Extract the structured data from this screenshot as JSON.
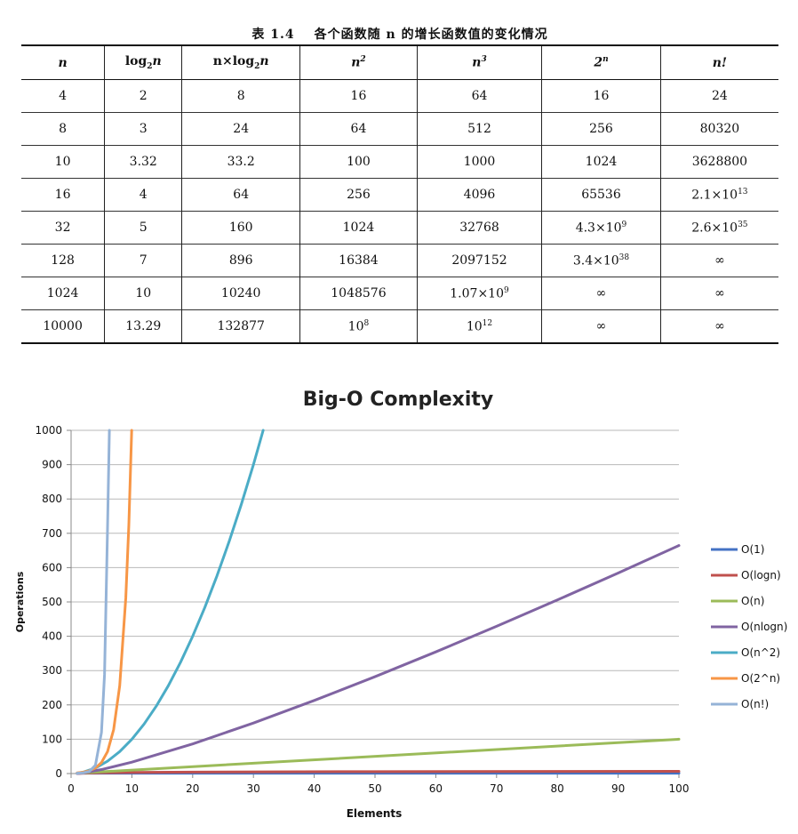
{
  "table": {
    "caption_number": "表 1.4",
    "caption_text": "各个函数随 n 的增长函数值的变化情况",
    "headers": [
      {
        "main": "n"
      },
      {
        "pre": "log",
        "sub": "2",
        "post": "n"
      },
      {
        "pre": "n×log",
        "sub": "2",
        "post": "n"
      },
      {
        "main": "n",
        "sup": "2"
      },
      {
        "main": "n",
        "sup": "3"
      },
      {
        "main": "2",
        "sup": "n"
      },
      {
        "main": "n!"
      }
    ],
    "rows": [
      [
        "4",
        "2",
        "8",
        "16",
        "64",
        "16",
        "24"
      ],
      [
        "8",
        "3",
        "24",
        "64",
        "512",
        "256",
        "80320"
      ],
      [
        "10",
        "3.32",
        "33.2",
        "100",
        "1000",
        "1024",
        "3628800"
      ],
      [
        "16",
        "4",
        "64",
        "256",
        "4096",
        "65536",
        {
          "base": "2.1×10",
          "exp": "13"
        }
      ],
      [
        "32",
        "5",
        "160",
        "1024",
        "32768",
        {
          "base": "4.3×10",
          "exp": "9"
        },
        {
          "base": "2.6×10",
          "exp": "35"
        }
      ],
      [
        "128",
        "7",
        "896",
        "16384",
        "2097152",
        {
          "base": "3.4×10",
          "exp": "38"
        },
        "∞"
      ],
      [
        "1024",
        "10",
        "10240",
        "1048576",
        {
          "base": "1.07×10",
          "exp": "9"
        },
        "∞",
        "∞"
      ],
      [
        "10000",
        "13.29",
        "132877",
        {
          "base": "10",
          "exp": "8"
        },
        {
          "base": "10",
          "exp": "12"
        },
        "∞",
        "∞"
      ]
    ]
  },
  "chart_data": {
    "type": "line",
    "title": "Big-O Complexity",
    "xlabel": "Elements",
    "ylabel": "Operations",
    "xlim": [
      0,
      100
    ],
    "ylim": [
      0,
      1000
    ],
    "xticks": [
      0,
      10,
      20,
      30,
      40,
      50,
      60,
      70,
      80,
      90,
      100
    ],
    "yticks": [
      0,
      100,
      200,
      300,
      400,
      500,
      600,
      700,
      800,
      900,
      1000
    ],
    "grid": true,
    "legend_position": "right",
    "series": [
      {
        "name": "O(1)",
        "color": "#4472C4",
        "x": [
          1,
          100
        ],
        "y": [
          1,
          1
        ]
      },
      {
        "name": "O(logn)",
        "color": "#C0504D",
        "x": [
          1,
          2,
          5,
          10,
          20,
          50,
          100
        ],
        "y": [
          0,
          1,
          2.32,
          3.32,
          4.32,
          5.64,
          6.64
        ]
      },
      {
        "name": "O(n)",
        "color": "#9BBB59",
        "x": [
          1,
          100
        ],
        "y": [
          1,
          100
        ]
      },
      {
        "name": "O(nlogn)",
        "color": "#8064A2",
        "x": [
          1,
          2,
          5,
          10,
          20,
          30,
          40,
          50,
          60,
          70,
          80,
          90,
          100
        ],
        "y": [
          0,
          2,
          11.6,
          33.2,
          86.4,
          147.2,
          212.9,
          282.2,
          354.4,
          429,
          505.8,
          584.3,
          664.4
        ]
      },
      {
        "name": "O(n^2)",
        "color": "#4BACC6",
        "x": [
          1,
          2,
          4,
          6,
          8,
          10,
          12,
          14,
          16,
          18,
          20,
          22,
          24,
          26,
          28,
          30,
          31.6
        ],
        "y": [
          1,
          4,
          16,
          36,
          64,
          100,
          144,
          196,
          256,
          324,
          400,
          484,
          576,
          676,
          784,
          900,
          1000
        ]
      },
      {
        "name": "O(2^n)",
        "color": "#F79646",
        "x": [
          1,
          2,
          3,
          4,
          5,
          6,
          7,
          8,
          9,
          9.5,
          9.97
        ],
        "y": [
          2,
          4,
          8,
          16,
          32,
          64,
          128,
          256,
          512,
          724,
          1000
        ]
      },
      {
        "name": "O(n!)",
        "color": "#95B3D7",
        "x": [
          1,
          2,
          3,
          4,
          5,
          5.5,
          6,
          6.3
        ],
        "y": [
          1,
          2,
          6,
          24,
          120,
          288,
          720,
          1000
        ]
      }
    ]
  }
}
